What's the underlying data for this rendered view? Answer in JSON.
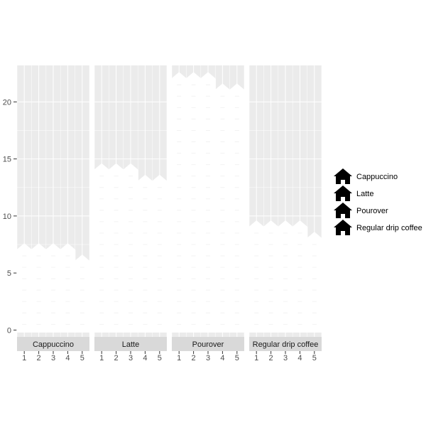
{
  "chart_data": {
    "type": "bar",
    "facets": [
      "Cappuccino",
      "Latte",
      "Pourover",
      "Regular drip coffee"
    ],
    "x": [
      1,
      2,
      3,
      4,
      5
    ],
    "x_ticks": [
      "1",
      "2",
      "3",
      "4",
      "5"
    ],
    "series": [
      {
        "name": "Cappuccino",
        "values": [
          7,
          7,
          7,
          7,
          6
        ]
      },
      {
        "name": "Latte",
        "values": [
          14,
          14,
          14,
          13,
          13
        ]
      },
      {
        "name": "Pourover",
        "values": [
          22,
          22,
          22,
          21,
          21
        ]
      },
      {
        "name": "Regular drip coffee",
        "values": [
          9,
          9,
          9,
          9,
          8
        ]
      }
    ],
    "ylim": [
      -0.6,
      23.2
    ],
    "y_ticks": [
      0,
      5,
      10,
      15,
      20
    ],
    "y_tick_labels": [
      "0",
      "5",
      "10",
      "15",
      "20"
    ],
    "legend": {
      "placement": "right",
      "icon": "house-icon",
      "entries": [
        "Cappuccino",
        "Latte",
        "Pourover",
        "Regular drip coffee"
      ]
    },
    "grid": true,
    "colors": {
      "panel": "#EBEBEB",
      "grid": "#FFFFFF",
      "strip": "#D9D9D9",
      "fill": "#FFFFFF",
      "legend_icon": "#000000",
      "text": "#4D4D4D"
    }
  }
}
